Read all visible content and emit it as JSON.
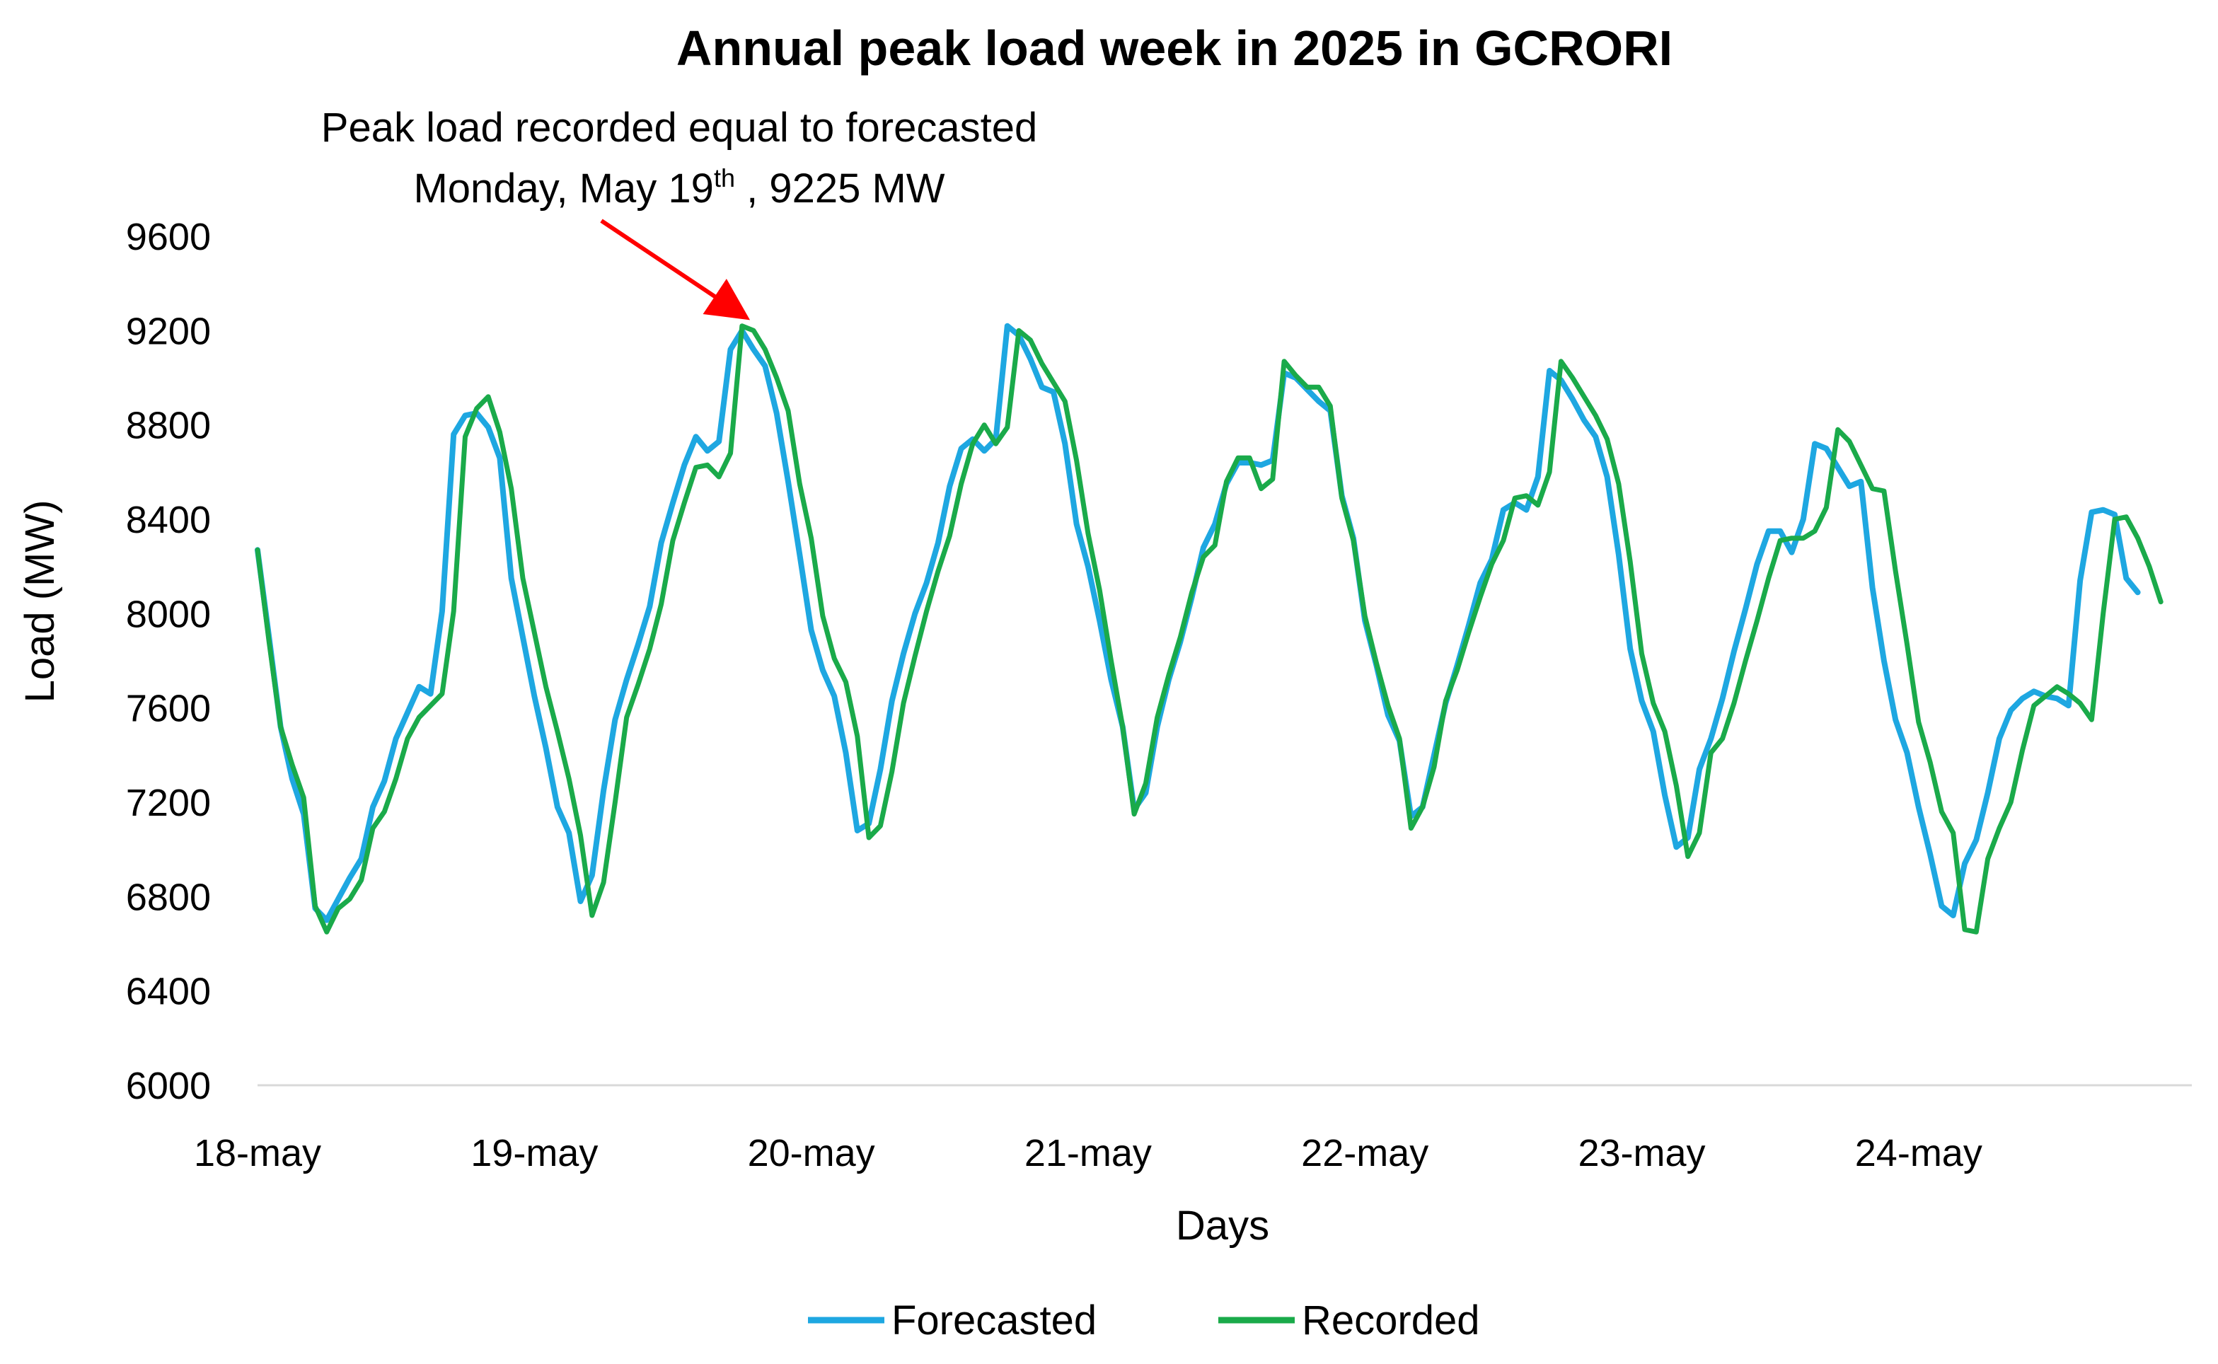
{
  "chart_data": {
    "type": "line",
    "title": "Annual peak load week in 2025 in GCRORI",
    "xlabel": "Days",
    "ylabel": "Load (MW)",
    "ylim": [
      6000,
      9600
    ],
    "yticks": [
      "9600",
      "9200",
      "8800",
      "8400",
      "8000",
      "7600",
      "7200",
      "6800",
      "6400",
      "6000"
    ],
    "x_tick_labels": [
      "18-may",
      "19-may",
      "20-may",
      "21-may",
      "22-may",
      "23-may",
      "24-may"
    ],
    "x_unit": "hours since 18-may 00:00",
    "grid": false,
    "legend_position": "bottom",
    "annotation": {
      "line1": "Peak load recorded equal to forecasted",
      "line2_pre": "Monday, May 19",
      "line2_sup": "th",
      "line2_post": " , 9225 MW",
      "arrow_color": "#FF0000",
      "target_x": 43,
      "target_y": 9225
    },
    "series": [
      {
        "name": "Forecasted",
        "color": "#1EA7E1",
        "values": [
          8270,
          7900,
          7520,
          7300,
          7150,
          6750,
          6700,
          6790,
          6880,
          6960,
          7180,
          7290,
          7470,
          7580,
          7690,
          7660,
          8010,
          8760,
          8840,
          8850,
          8790,
          8660,
          8150,
          7900,
          7650,
          7430,
          7180,
          7070,
          6780,
          6890,
          7250,
          7550,
          7720,
          7870,
          8030,
          8300,
          8470,
          8630,
          8750,
          8690,
          8730,
          9120,
          9200,
          9120,
          9050,
          8850,
          8560,
          8250,
          7930,
          7760,
          7650,
          7410,
          7080,
          7110,
          7340,
          7630,
          7830,
          8000,
          8130,
          8300,
          8540,
          8700,
          8740,
          8690,
          8740,
          9220,
          9180,
          9080,
          8960,
          8940,
          8720,
          8380,
          8200,
          7970,
          7720,
          7520,
          7170,
          7240,
          7520,
          7720,
          7880,
          8070,
          8280,
          8380,
          8550,
          8640,
          8640,
          8630,
          8650,
          9020,
          9000,
          8950,
          8900,
          8860,
          8500,
          8320,
          7970,
          7780,
          7570,
          7460,
          7140,
          7180,
          7400,
          7620,
          7780,
          7950,
          8130,
          8230,
          8440,
          8470,
          8440,
          8580,
          9030,
          8990,
          8910,
          8820,
          8750,
          8580,
          8250,
          7850,
          7630,
          7500,
          7230,
          7010,
          7050,
          7340,
          7470,
          7640,
          7840,
          8020,
          8210,
          8350,
          8350,
          8260,
          8400,
          8720,
          8700,
          8620,
          8540,
          8560,
          8110,
          7800,
          7550,
          7410,
          7180,
          6980,
          6760,
          6720,
          6940,
          7040,
          7240,
          7470,
          7590,
          7640,
          7670,
          7650,
          7640,
          7610,
          8140,
          8430,
          8440,
          8420,
          8150,
          8090
        ]
      },
      {
        "name": "Recorded",
        "color": "#1AAA4A",
        "values": [
          8270,
          7880,
          7520,
          7360,
          7220,
          6760,
          6650,
          6750,
          6790,
          6870,
          7090,
          7160,
          7300,
          7470,
          7560,
          7610,
          7660,
          8010,
          8750,
          8870,
          8920,
          8770,
          8530,
          8150,
          7920,
          7690,
          7500,
          7300,
          7060,
          6720,
          6860,
          7200,
          7560,
          7700,
          7850,
          8040,
          8310,
          8470,
          8620,
          8630,
          8580,
          8680,
          9220,
          9200,
          9120,
          9000,
          8860,
          8550,
          8320,
          7990,
          7810,
          7710,
          7480,
          7050,
          7100,
          7330,
          7620,
          7820,
          8010,
          8180,
          8330,
          8550,
          8720,
          8800,
          8720,
          8790,
          9200,
          9160,
          9060,
          8980,
          8900,
          8650,
          8340,
          8100,
          7800,
          7520,
          7150,
          7280,
          7560,
          7740,
          7900,
          8090,
          8240,
          8290,
          8560,
          8660,
          8660,
          8530,
          8570,
          9070,
          9010,
          8960,
          8960,
          8880,
          8490,
          8310,
          7990,
          7790,
          7610,
          7470,
          7090,
          7180,
          7350,
          7630,
          7760,
          7920,
          8070,
          8210,
          8310,
          8490,
          8500,
          8460,
          8600,
          9070,
          9000,
          8920,
          8840,
          8740,
          8550,
          8220,
          7830,
          7620,
          7500,
          7270,
          6970,
          7070,
          7410,
          7470,
          7620,
          7800,
          7970,
          8150,
          8310,
          8320,
          8320,
          8350,
          8450,
          8780,
          8730,
          8630,
          8530,
          8520,
          8180,
          7870,
          7540,
          7370,
          7160,
          7070,
          6660,
          6650,
          6960,
          7090,
          7200,
          7420,
          7610,
          7650,
          7690,
          7660,
          7620,
          7550,
          8000,
          8400,
          8410,
          8320,
          8200,
          8050
        ]
      }
    ]
  }
}
